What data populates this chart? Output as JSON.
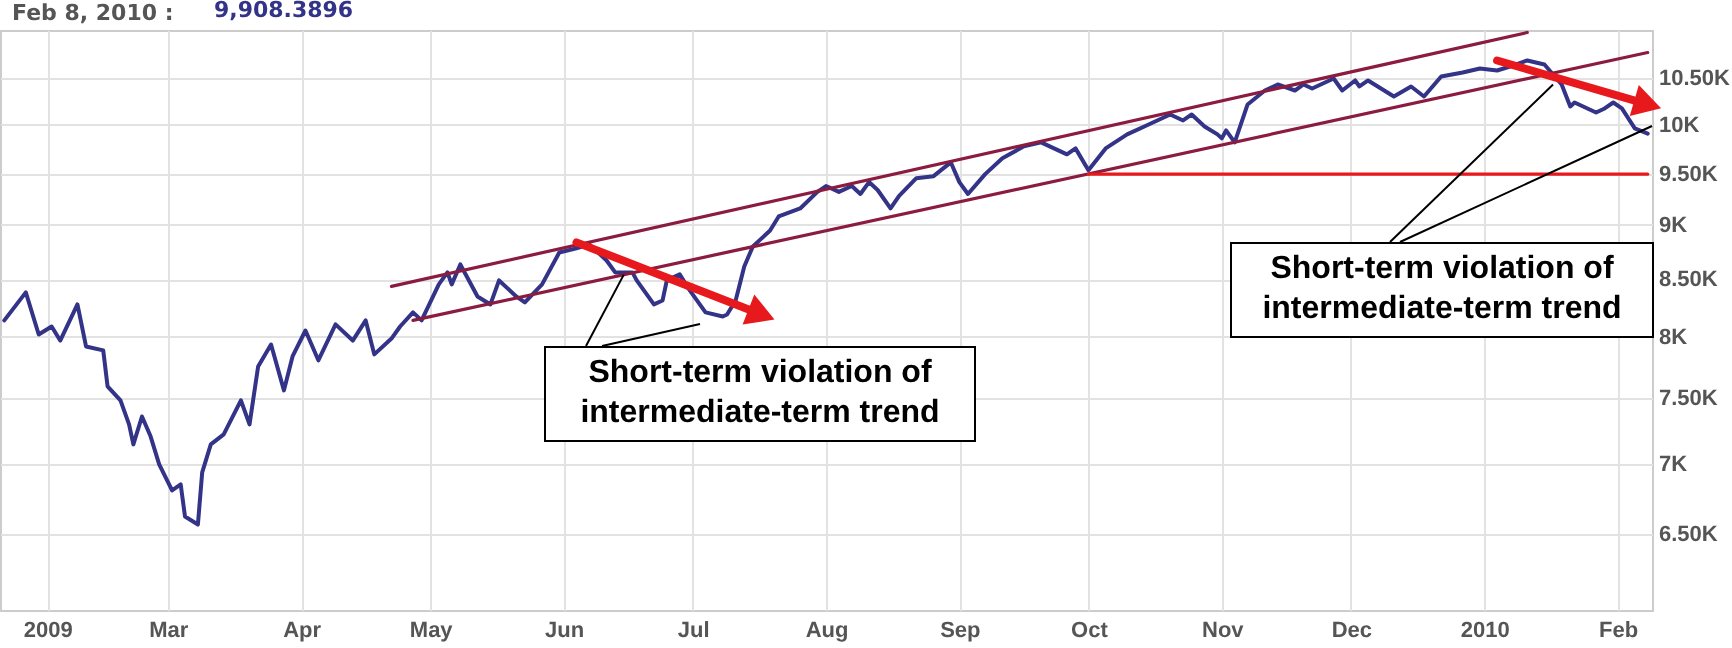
{
  "chart_data": {
    "type": "line",
    "title": "Feb 8, 2010 :",
    "xlim": [
      "2009-01-21",
      "2010-02-09"
    ],
    "xticks": [
      {
        "value": "2009-02-01",
        "label": "2009"
      },
      {
        "value": "2009-03-01",
        "label": "Mar"
      },
      {
        "value": "2009-04-01",
        "label": "Apr"
      },
      {
        "value": "2009-05-01",
        "label": "May"
      },
      {
        "value": "2009-06-01",
        "label": "Jun"
      },
      {
        "value": "2009-07-01",
        "label": "Jul"
      },
      {
        "value": "2009-08-01",
        "label": "Aug"
      },
      {
        "value": "2009-09-01",
        "label": "Sep"
      },
      {
        "value": "2009-10-01",
        "label": "Oct"
      },
      {
        "value": "2009-11-01",
        "label": "Nov"
      },
      {
        "value": "2009-12-01",
        "label": "Dec"
      },
      {
        "value": "2010-01-01",
        "label": "2010"
      },
      {
        "value": "2010-02-01",
        "label": "Feb"
      }
    ],
    "ylim": [
      6000,
      11050
    ],
    "log": true,
    "yticks": [
      {
        "value": 6500,
        "label": "6.50K"
      },
      {
        "value": 7000,
        "label": "7K"
      },
      {
        "value": 7500,
        "label": "7.50K"
      },
      {
        "value": 8000,
        "label": "8K"
      },
      {
        "value": 8500,
        "label": "8.50K"
      },
      {
        "value": 9000,
        "label": "9K"
      },
      {
        "value": 9500,
        "label": "9.50K"
      },
      {
        "value": 10000,
        "label": "10K"
      },
      {
        "value": 10500,
        "label": "10.50K"
      }
    ],
    "grid": true,
    "legend": "top left",
    "annotations": [
      {
        "text": "Short-term violation of intermediate-term trend",
        "x": "2009-06-15",
        "y": 8541
      },
      {
        "text": "Short-term violation of intermediate-term trend",
        "x": "2010-01-17",
        "y": 10434
      }
    ],
    "series": [
      {
        "name": "9,908.3896",
        "color": "#333388",
        "x": [
          "2009-01-22",
          "2009-01-27",
          "2009-01-30",
          "2009-02-02",
          "2009-02-04",
          "2009-02-08",
          "2009-02-10",
          "2009-02-14",
          "2009-02-15",
          "2009-02-18",
          "2009-02-20",
          "2009-02-21",
          "2009-02-23",
          "2009-02-25",
          "2009-02-27",
          "2009-03-02",
          "2009-03-04",
          "2009-03-05",
          "2009-03-08",
          "2009-03-09",
          "2009-03-11",
          "2009-03-14",
          "2009-03-18",
          "2009-03-20",
          "2009-03-22",
          "2009-03-25",
          "2009-03-28",
          "2009-03-30",
          "2009-04-02",
          "2009-04-05",
          "2009-04-09",
          "2009-04-13",
          "2009-04-16",
          "2009-04-18",
          "2009-04-22",
          "2009-04-24",
          "2009-04-27",
          "2009-04-29",
          "2009-05-03",
          "2009-05-05",
          "2009-05-06",
          "2009-05-08",
          "2009-05-12",
          "2009-05-15",
          "2009-05-17",
          "2009-05-21",
          "2009-05-23",
          "2009-05-27",
          "2009-05-31",
          "2009-06-04",
          "2009-06-07",
          "2009-06-11",
          "2009-06-13",
          "2009-06-17",
          "2009-06-18",
          "2009-06-22",
          "2009-06-24",
          "2009-06-25",
          "2009-06-28",
          "2009-06-30",
          "2009-07-04",
          "2009-07-08",
          "2009-07-09",
          "2009-07-11",
          "2009-07-13",
          "2009-07-15",
          "2009-07-19",
          "2009-07-21",
          "2009-07-26",
          "2009-07-30",
          "2009-08-01",
          "2009-08-04",
          "2009-08-07",
          "2009-08-09",
          "2009-08-11",
          "2009-08-13",
          "2009-08-16",
          "2009-08-18",
          "2009-08-22",
          "2009-08-26",
          "2009-08-30",
          "2009-09-01",
          "2009-09-03",
          "2009-09-07",
          "2009-09-11",
          "2009-09-16",
          "2009-09-20",
          "2009-09-26",
          "2009-09-28",
          "2009-10-01",
          "2009-10-05",
          "2009-10-10",
          "2009-10-15",
          "2009-10-20",
          "2009-10-23",
          "2009-10-25",
          "2009-10-28",
          "2009-10-31",
          "2009-11-01",
          "2009-11-02",
          "2009-11-04",
          "2009-11-07",
          "2009-11-11",
          "2009-11-14",
          "2009-11-18",
          "2009-11-20",
          "2009-11-22",
          "2009-11-27",
          "2009-11-29",
          "2009-12-02",
          "2009-12-03",
          "2009-12-05",
          "2009-12-11",
          "2009-12-15",
          "2009-12-18",
          "2009-12-22",
          "2009-12-27",
          "2009-12-31",
          "2010-01-04",
          "2010-01-07",
          "2010-01-11",
          "2010-01-15",
          "2010-01-19",
          "2010-01-21",
          "2010-01-22",
          "2010-01-27",
          "2010-01-29",
          "2010-01-31",
          "2010-02-02",
          "2010-02-05",
          "2010-02-08"
        ],
        "values": [
          8139,
          8383,
          8019,
          8087,
          7968,
          8277,
          7919,
          7886,
          7593,
          7482,
          7295,
          7143,
          7356,
          7204,
          6994,
          6805,
          6848,
          6621,
          6565,
          6935,
          7143,
          7219,
          7482,
          7295,
          7753,
          7935,
          7561,
          7836,
          8053,
          7804,
          8105,
          7968,
          8139,
          7853,
          7985,
          8087,
          8208,
          8139,
          8454,
          8561,
          8454,
          8633,
          8347,
          8277,
          8489,
          8347,
          8294,
          8454,
          8742,
          8780,
          8817,
          8669,
          8561,
          8561,
          8489,
          8277,
          8311,
          8489,
          8543,
          8418,
          8208,
          8173,
          8190,
          8311,
          8615,
          8798,
          8947,
          9080,
          9157,
          9318,
          9376,
          9318,
          9376,
          9298,
          9415,
          9337,
          9157,
          9279,
          9454,
          9474,
          9613,
          9415,
          9298,
          9494,
          9654,
          9776,
          9817,
          9694,
          9755,
          9534,
          9755,
          9900,
          10004,
          10110,
          10046,
          10110,
          9983,
          9900,
          9858,
          9941,
          9817,
          10217,
          10368,
          10434,
          10368,
          10434,
          10390,
          10500,
          10368,
          10478,
          10412,
          10478,
          10303,
          10412,
          10303,
          10522,
          10567,
          10611,
          10589,
          10633,
          10701,
          10656,
          10434,
          10195,
          10238,
          10131,
          10174,
          10238,
          10174,
          9962,
          9908
        ]
      },
      {
        "color": "#8b1c3f",
        "x": [
          "2009-04-22",
          "2010-01-11"
        ],
        "values": [
          8436,
          11021
        ]
      },
      {
        "color": "#8b1c3f",
        "x": [
          "2009-04-27",
          "2010-02-08"
        ],
        "values": [
          8139,
          10791
        ]
      },
      {
        "color": "#e8191c",
        "x": [
          "2009-10-01",
          "2010-02-08"
        ],
        "values": [
          9494,
          9494
        ]
      },
      {
        "color": "#e8191c",
        "marker": "triangle",
        "x": [
          "2009-06-04",
          "2009-07-17"
        ],
        "values": [
          8836,
          8190
        ]
      },
      {
        "color": "#e8191c",
        "marker": "triangle",
        "x": [
          "2010-01-04",
          "2010-02-08"
        ],
        "values": [
          10701,
          10217
        ]
      }
    ]
  }
}
